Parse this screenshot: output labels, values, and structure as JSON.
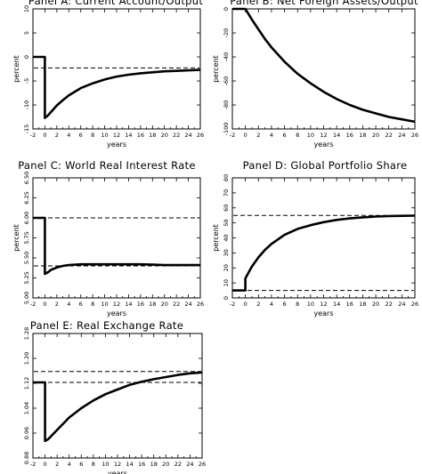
{
  "chart_data": [
    {
      "type": "line",
      "title": "Panel A: Current Account/Output",
      "xlabel": "years",
      "ylabel": "percent",
      "xlim": [
        -2,
        26
      ],
      "ylim": [
        -15,
        10
      ],
      "xticks": [
        "-2",
        "0",
        "2",
        "4",
        "6",
        "8",
        "10",
        "12",
        "14",
        "16",
        "18",
        "20",
        "22",
        "24",
        "26"
      ],
      "yticks": [
        "-15",
        "-10",
        "-5",
        "0",
        "5",
        "10"
      ],
      "reference_lines": [
        -2.3
      ],
      "series": [
        {
          "x": [
            -2,
            0,
            0,
            0.5,
            1,
            2,
            3,
            4,
            6,
            8,
            10,
            12,
            14,
            16,
            18,
            20,
            22,
            24,
            26
          ],
          "values": [
            0,
            0,
            -12.7,
            -12.2,
            -11.5,
            -10.1,
            -9.0,
            -8.0,
            -6.5,
            -5.5,
            -4.7,
            -4.1,
            -3.7,
            -3.4,
            -3.2,
            -3.0,
            -2.9,
            -2.8,
            -2.7
          ]
        }
      ]
    },
    {
      "type": "line",
      "title": "Panel B: Net Foreign Assets/Output",
      "xlabel": "years",
      "ylabel": "percent",
      "xlim": [
        -2,
        26
      ],
      "ylim": [
        -100,
        0
      ],
      "xticks": [
        "-2",
        "0",
        "2",
        "4",
        "6",
        "8",
        "10",
        "12",
        "14",
        "16",
        "18",
        "20",
        "22",
        "24",
        "26"
      ],
      "yticks": [
        "-100",
        "-80",
        "-60",
        "-40",
        "-20",
        "0"
      ],
      "reference_lines": [
        0,
        -100
      ],
      "series": [
        {
          "x": [
            -2,
            0,
            1,
            2,
            3,
            4,
            6,
            8,
            10,
            12,
            14,
            16,
            18,
            20,
            22,
            24,
            26
          ],
          "values": [
            0,
            0,
            -9,
            -17,
            -25,
            -32,
            -44,
            -54,
            -62,
            -69,
            -75,
            -80,
            -84,
            -87,
            -90,
            -92,
            -94
          ]
        }
      ]
    },
    {
      "type": "line",
      "title": "Panel C: World Real Interest Rate",
      "xlabel": "years",
      "ylabel": "percent",
      "xlim": [
        -2,
        26
      ],
      "ylim": [
        5.0,
        6.5
      ],
      "xticks": [
        "-2",
        "0",
        "2",
        "4",
        "6",
        "8",
        "10",
        "12",
        "14",
        "16",
        "18",
        "20",
        "22",
        "24",
        "26"
      ],
      "yticks": [
        "5.00",
        "5.25",
        "5.50",
        "5.75",
        "6.00",
        "6.25",
        "6.50"
      ],
      "reference_lines": [
        6.0,
        5.4
      ],
      "series": [
        {
          "x": [
            -2,
            0,
            0,
            0.5,
            1,
            2,
            3,
            4,
            6,
            8,
            10,
            12,
            14,
            16,
            18,
            20,
            22,
            24,
            26
          ],
          "values": [
            6.0,
            6.0,
            5.3,
            5.32,
            5.35,
            5.38,
            5.4,
            5.41,
            5.42,
            5.42,
            5.42,
            5.42,
            5.42,
            5.42,
            5.415,
            5.41,
            5.41,
            5.41,
            5.41
          ]
        }
      ]
    },
    {
      "type": "line",
      "title": "Panel D: Global Portfolio Share",
      "xlabel": "years",
      "ylabel": "percent",
      "xlim": [
        -2,
        26
      ],
      "ylim": [
        0,
        80
      ],
      "xticks": [
        "-2",
        "0",
        "2",
        "4",
        "6",
        "8",
        "10",
        "12",
        "14",
        "16",
        "18",
        "20",
        "22",
        "24",
        "26"
      ],
      "yticks": [
        "0",
        "10",
        "20",
        "30",
        "40",
        "50",
        "60",
        "70",
        "80"
      ],
      "reference_lines": [
        5,
        55
      ],
      "series": [
        {
          "x": [
            -2,
            0,
            0,
            0.5,
            1,
            2,
            3,
            4,
            6,
            8,
            10,
            12,
            14,
            16,
            18,
            20,
            22,
            24,
            26
          ],
          "values": [
            5,
            5,
            13,
            17,
            21,
            27,
            32,
            36,
            42,
            46,
            48.5,
            50.5,
            52,
            53,
            53.7,
            54.2,
            54.5,
            54.7,
            54.8
          ]
        }
      ]
    },
    {
      "type": "line",
      "title": "Panel E: Real Exchange Rate",
      "xlabel": "years",
      "ylabel": "",
      "xlim": [
        -2,
        26
      ],
      "ylim": [
        0.88,
        1.28
      ],
      "xticks": [
        "-2",
        "0",
        "2",
        "4",
        "6",
        "8",
        "10",
        "12",
        "14",
        "16",
        "18",
        "20",
        "22",
        "24",
        "26"
      ],
      "yticks": [
        "0.88",
        "0.96",
        "1.04",
        "1.12",
        "1.20",
        "1.28"
      ],
      "reference_lines": [
        1.123,
        1.158
      ],
      "series": [
        {
          "x": [
            -2,
            0,
            0,
            0.5,
            1,
            2,
            3,
            4,
            6,
            8,
            10,
            12,
            14,
            16,
            18,
            20,
            22,
            24,
            26
          ],
          "values": [
            1.123,
            1.123,
            0.935,
            0.94,
            0.95,
            0.97,
            0.99,
            1.01,
            1.04,
            1.065,
            1.085,
            1.1,
            1.115,
            1.125,
            1.133,
            1.14,
            1.147,
            1.152,
            1.155
          ]
        }
      ]
    }
  ]
}
